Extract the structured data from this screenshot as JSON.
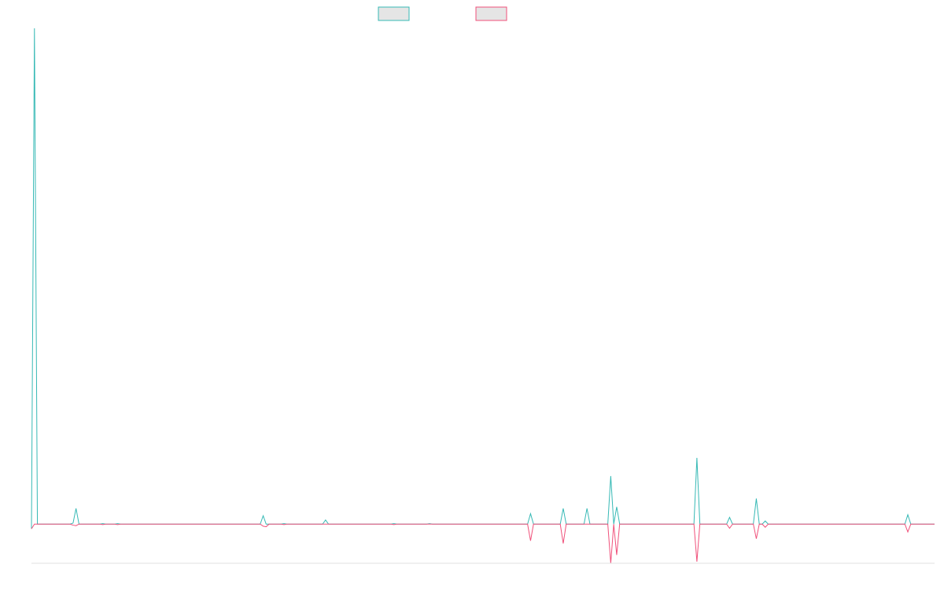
{
  "chart_data": {
    "type": "line",
    "title": "",
    "xlabel": "",
    "ylabel": "",
    "grid": false,
    "legend_placement": "top-center",
    "series": [
      {
        "color": "#36b9b5",
        "points": [
          [
            0,
            -0.9
          ],
          [
            1,
            95.0
          ],
          [
            2,
            0
          ],
          [
            13,
            0
          ],
          [
            14,
            0.2
          ],
          [
            15,
            3.0
          ],
          [
            16,
            0
          ],
          [
            23,
            0
          ],
          [
            24,
            0.1
          ],
          [
            25,
            0
          ],
          [
            28,
            0
          ],
          [
            29,
            0.1
          ],
          [
            30,
            0
          ],
          [
            77,
            0
          ],
          [
            78,
            1.6
          ],
          [
            79,
            0
          ],
          [
            84,
            0
          ],
          [
            85,
            0.1
          ],
          [
            86,
            0
          ],
          [
            98,
            0
          ],
          [
            99,
            0.8
          ],
          [
            100,
            0
          ],
          [
            121,
            0
          ],
          [
            122,
            0.1
          ],
          [
            123,
            0
          ],
          [
            133,
            0
          ],
          [
            134,
            0.1
          ],
          [
            135,
            0
          ],
          [
            167,
            0
          ],
          [
            168,
            2.0
          ],
          [
            169,
            0
          ],
          [
            178,
            0
          ],
          [
            179,
            3.0
          ],
          [
            180,
            0
          ],
          [
            186,
            0
          ],
          [
            187,
            3.0
          ],
          [
            188,
            0
          ],
          [
            194,
            0
          ],
          [
            195,
            9.2
          ],
          [
            196,
            0
          ],
          [
            197,
            3.3
          ],
          [
            198,
            0
          ],
          [
            223,
            0
          ],
          [
            224,
            12.7
          ],
          [
            225,
            0
          ],
          [
            234,
            0
          ],
          [
            235,
            1.3
          ],
          [
            236,
            0
          ],
          [
            243,
            0
          ],
          [
            244,
            4.9
          ],
          [
            245,
            0
          ],
          [
            246,
            0
          ],
          [
            247,
            0.6
          ],
          [
            248,
            0
          ],
          [
            294,
            0
          ],
          [
            295,
            1.8
          ],
          [
            296,
            0
          ],
          [
            304,
            0
          ]
        ]
      },
      {
        "color": "#f0507a",
        "points": [
          [
            0,
            -0.9
          ],
          [
            1,
            0
          ],
          [
            13,
            0
          ],
          [
            14,
            -0.2
          ],
          [
            15,
            -0.3
          ],
          [
            16,
            0
          ],
          [
            23,
            0
          ],
          [
            24,
            -0.1
          ],
          [
            25,
            0
          ],
          [
            28,
            0
          ],
          [
            29,
            -0.1
          ],
          [
            30,
            0
          ],
          [
            77,
            0
          ],
          [
            78,
            -0.4
          ],
          [
            79,
            -0.5
          ],
          [
            80,
            0
          ],
          [
            84,
            0
          ],
          [
            85,
            -0.1
          ],
          [
            86,
            0
          ],
          [
            121,
            0
          ],
          [
            122,
            -0.1
          ],
          [
            123,
            0
          ],
          [
            167,
            0
          ],
          [
            168,
            -3.2
          ],
          [
            169,
            0
          ],
          [
            178,
            0
          ],
          [
            179,
            -3.7
          ],
          [
            180,
            0
          ],
          [
            194,
            0
          ],
          [
            195,
            -7.5
          ],
          [
            196,
            0
          ],
          [
            197,
            -5.9
          ],
          [
            198,
            0
          ],
          [
            223,
            0
          ],
          [
            224,
            -7.2
          ],
          [
            225,
            0
          ],
          [
            234,
            0
          ],
          [
            235,
            -0.8
          ],
          [
            236,
            0
          ],
          [
            243,
            0
          ],
          [
            244,
            -2.8
          ],
          [
            245,
            0
          ],
          [
            246,
            0
          ],
          [
            247,
            -0.6
          ],
          [
            248,
            0
          ],
          [
            294,
            0
          ],
          [
            295,
            -1.5
          ],
          [
            296,
            0
          ],
          [
            304,
            0
          ]
        ]
      }
    ],
    "xlim": [
      0,
      304
    ],
    "ylim": [
      -7.5,
      95.0
    ]
  }
}
